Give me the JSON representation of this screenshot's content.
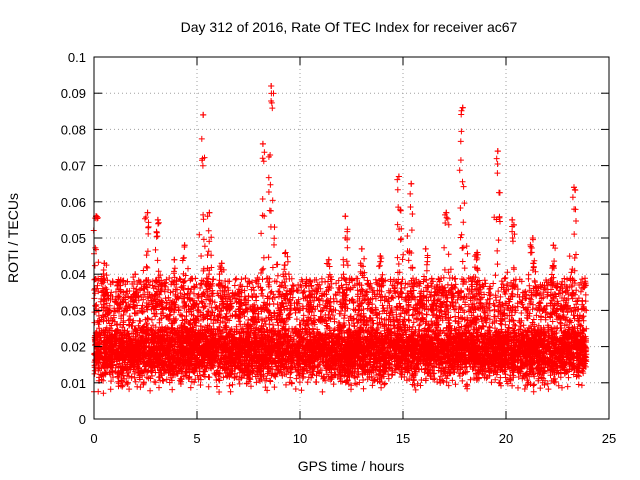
{
  "chart_data": {
    "type": "scatter",
    "title": "Day 312 of 2016, Rate Of TEC Index for receiver ac67",
    "xlabel": "GPS time / hours",
    "ylabel": "ROTI / TECUs",
    "xlim": [
      0,
      25
    ],
    "ylim": [
      0,
      0.1
    ],
    "x_ticks": [
      0,
      5,
      10,
      15,
      20,
      25
    ],
    "x_tick_labels": [
      "0",
      "5",
      "10",
      "15",
      "20",
      "25"
    ],
    "y_ticks": [
      0,
      0.01,
      0.02,
      0.03,
      0.04,
      0.05,
      0.06,
      0.07,
      0.08,
      0.09,
      0.1
    ],
    "y_tick_labels": [
      "0",
      "0.01",
      "0.02",
      "0.03",
      "0.04",
      "0.05",
      "0.06",
      "0.07",
      "0.08",
      "0.09",
      "0.1"
    ],
    "grid": true,
    "marker": "+",
    "series": [
      {
        "name": "ROTI",
        "color": "#ff0000",
        "x_range": [
          0,
          23.9
        ],
        "typical_range": [
          0.005,
          0.03
        ],
        "peaks": [
          {
            "x": 0.1,
            "y": 0.056
          },
          {
            "x": 0.5,
            "y": 0.043
          },
          {
            "x": 1.2,
            "y": 0.038
          },
          {
            "x": 2.0,
            "y": 0.04
          },
          {
            "x": 2.6,
            "y": 0.057
          },
          {
            "x": 3.1,
            "y": 0.055
          },
          {
            "x": 3.9,
            "y": 0.044
          },
          {
            "x": 4.4,
            "y": 0.048
          },
          {
            "x": 5.3,
            "y": 0.084
          },
          {
            "x": 5.6,
            "y": 0.057
          },
          {
            "x": 6.2,
            "y": 0.043
          },
          {
            "x": 7.1,
            "y": 0.037
          },
          {
            "x": 8.2,
            "y": 0.076
          },
          {
            "x": 8.6,
            "y": 0.092
          },
          {
            "x": 9.3,
            "y": 0.046
          },
          {
            "x": 10.5,
            "y": 0.038
          },
          {
            "x": 11.4,
            "y": 0.044
          },
          {
            "x": 12.2,
            "y": 0.056
          },
          {
            "x": 13.0,
            "y": 0.047
          },
          {
            "x": 13.9,
            "y": 0.045
          },
          {
            "x": 14.8,
            "y": 0.067
          },
          {
            "x": 15.4,
            "y": 0.065
          },
          {
            "x": 16.1,
            "y": 0.047
          },
          {
            "x": 17.1,
            "y": 0.057
          },
          {
            "x": 17.9,
            "y": 0.086
          },
          {
            "x": 18.6,
            "y": 0.046
          },
          {
            "x": 19.6,
            "y": 0.074
          },
          {
            "x": 20.3,
            "y": 0.055
          },
          {
            "x": 21.3,
            "y": 0.05
          },
          {
            "x": 22.3,
            "y": 0.048
          },
          {
            "x": 23.3,
            "y": 0.064
          }
        ]
      }
    ]
  }
}
